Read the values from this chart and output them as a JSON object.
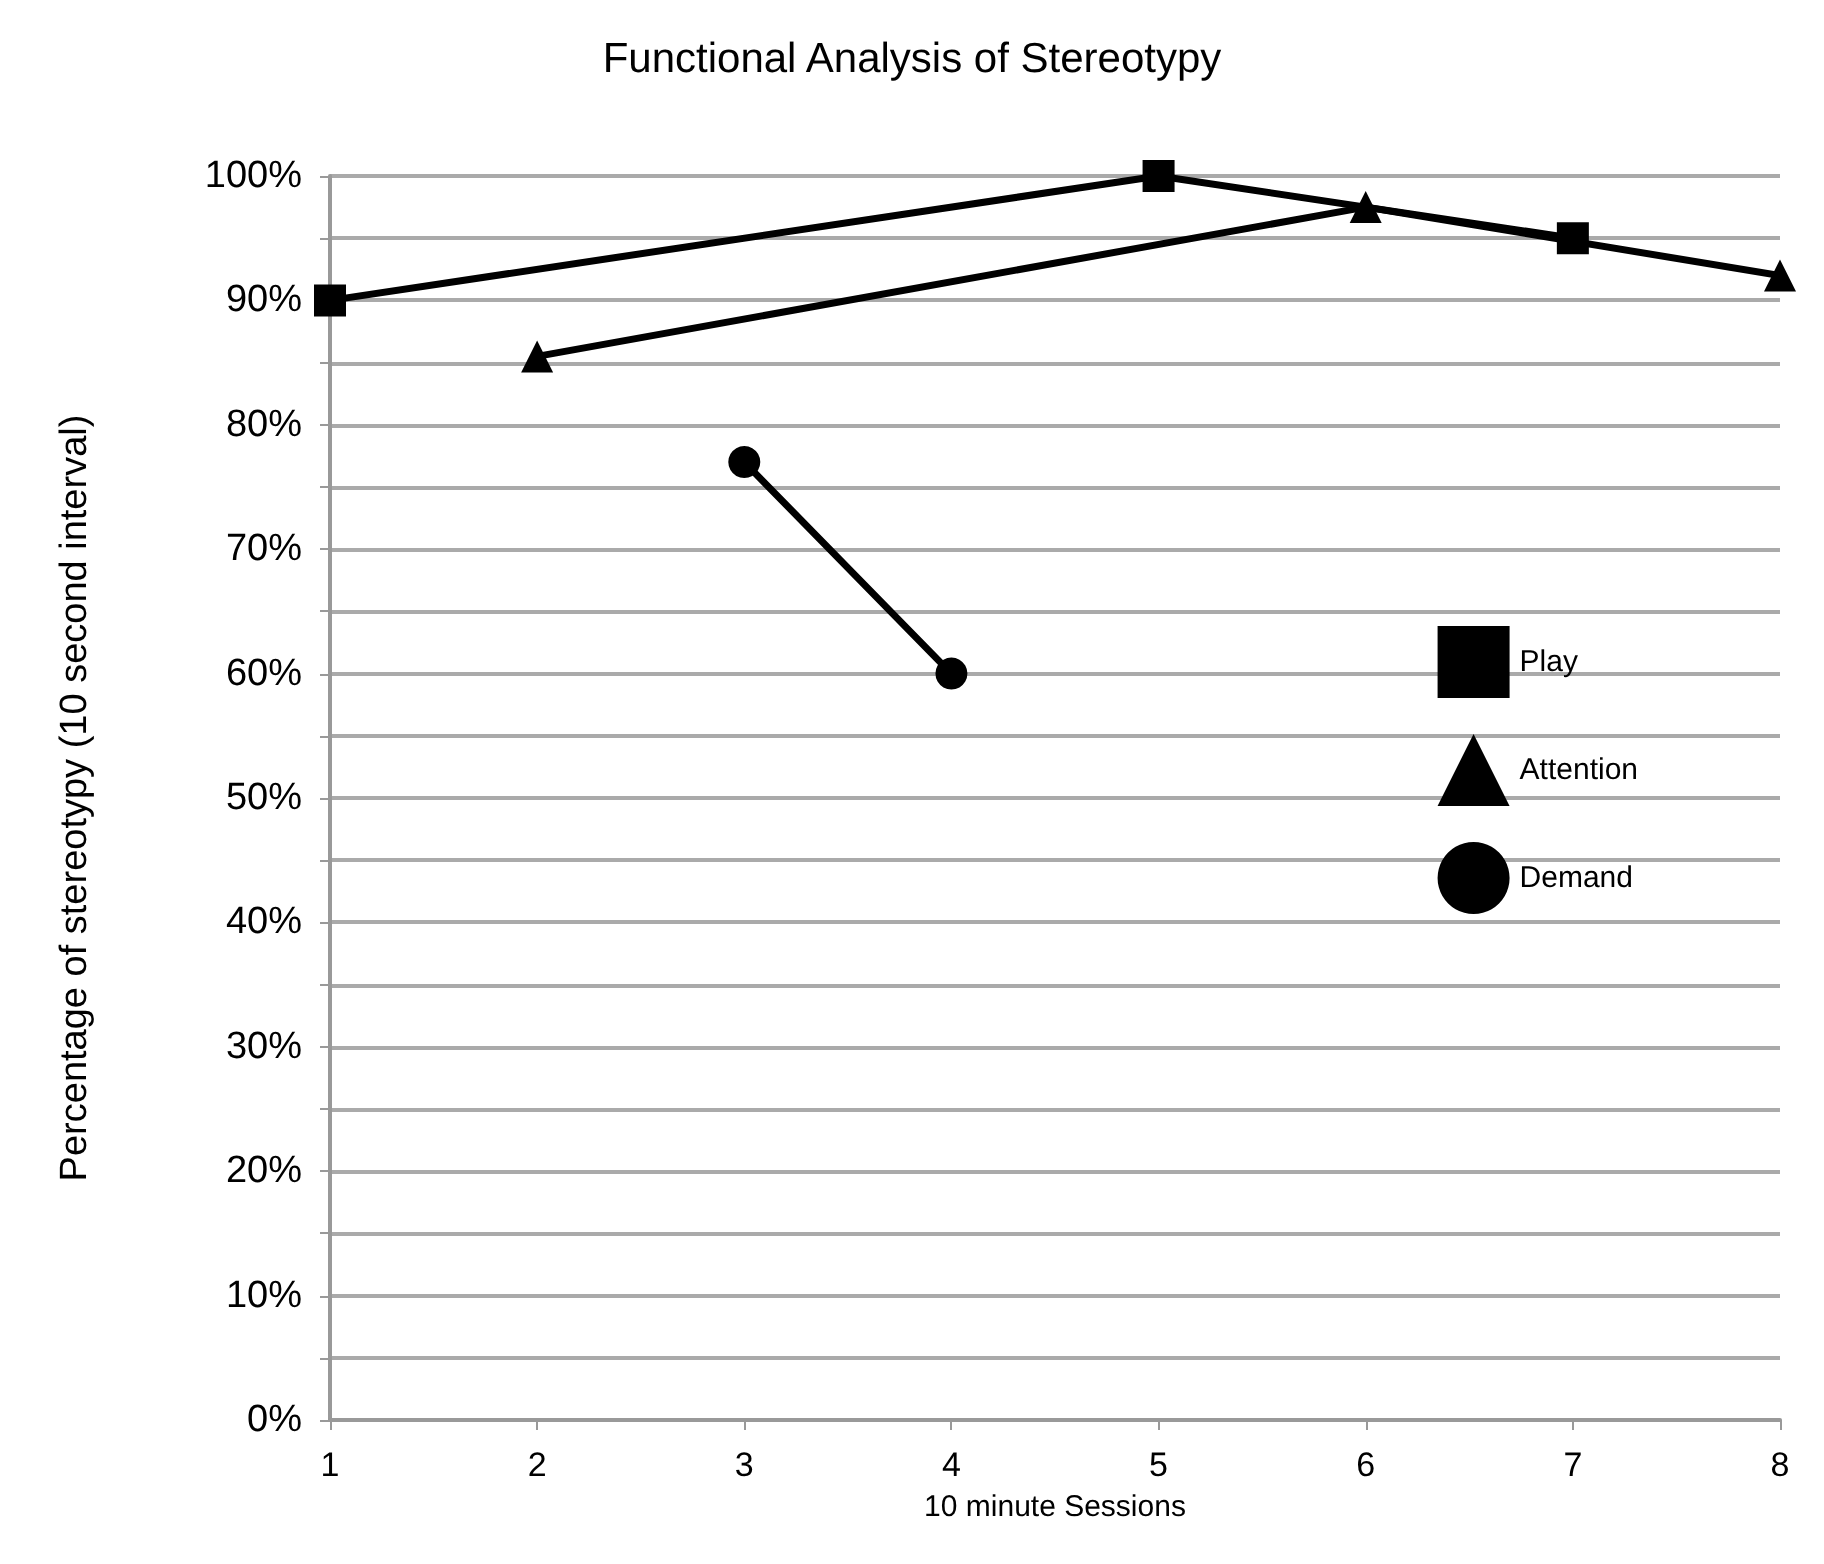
{
  "chart_data": {
    "type": "line",
    "title": "Functional Analysis of Stereotypy",
    "xlabel": "10 minute Sessions",
    "ylabel": "Percentage of stereotypy (10 second interval)",
    "series": [
      {
        "name": "Play",
        "color": "#000000",
        "marker": "square",
        "x": [
          1,
          5,
          7
        ],
        "values": [
          90,
          100,
          95
        ]
      },
      {
        "name": "Attention",
        "color": "#000000",
        "marker": "triangle",
        "x": [
          2,
          6,
          8
        ],
        "values": [
          85.5,
          97.5,
          92
        ]
      },
      {
        "name": "Demand",
        "color": "#000000",
        "marker": "circle",
        "x": [
          3,
          4
        ],
        "values": [
          77,
          60
        ]
      }
    ],
    "xlim": [
      1,
      8
    ],
    "xticks": [
      1,
      2,
      3,
      4,
      5,
      6,
      7,
      8
    ],
    "ylim": [
      0,
      100
    ],
    "yticks": [
      {
        "value": 0,
        "label": "0%"
      },
      {
        "value": 5,
        "label": null
      },
      {
        "value": 10,
        "label": "10%"
      },
      {
        "value": 15,
        "label": null
      },
      {
        "value": 20,
        "label": "20%"
      },
      {
        "value": 25,
        "label": null
      },
      {
        "value": 30,
        "label": "30%"
      },
      {
        "value": 35,
        "label": null
      },
      {
        "value": 40,
        "label": "40%"
      },
      {
        "value": 45,
        "label": null
      },
      {
        "value": 50,
        "label": "50%"
      },
      {
        "value": 55,
        "label": null
      },
      {
        "value": 60,
        "label": "60%"
      },
      {
        "value": 65,
        "label": null
      },
      {
        "value": 70,
        "label": "70%"
      },
      {
        "value": 75,
        "label": null
      },
      {
        "value": 80,
        "label": "80%"
      },
      {
        "value": 85,
        "label": null
      },
      {
        "value": 90,
        "label": "90%"
      },
      {
        "value": 95,
        "label": null
      },
      {
        "value": 100,
        "label": "100%"
      }
    ],
    "grid": "y",
    "legend": "right",
    "line_style": "solid"
  }
}
